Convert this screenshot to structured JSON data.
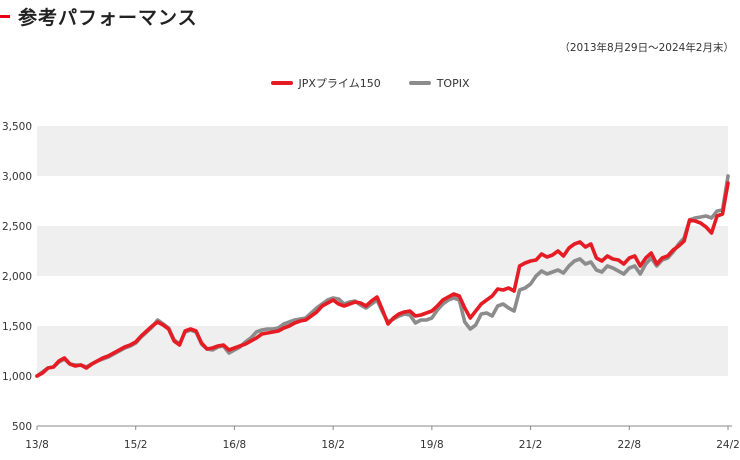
{
  "header": {
    "title": "参考パフォーマンス",
    "period": "（2013年8月29日～2024年2月末）"
  },
  "colors": {
    "accent": "#e60012",
    "jpx": "#e61c24",
    "topix": "#8c8c8c",
    "band": "#efefef"
  },
  "chart_data": {
    "type": "line",
    "title": "参考パフォーマンス",
    "subtitle": "（2013年8月29日～2024年2月末）",
    "legend_position": "top-center",
    "ylim": [
      500,
      3500
    ],
    "y_ticks": [
      500,
      1000,
      1500,
      2000,
      2500,
      3000,
      3500
    ],
    "y_tick_labels": [
      "500",
      "1,000",
      "1,500",
      "2,000",
      "2,500",
      "3,000",
      "3,500"
    ],
    "x_ticks": [
      "13/8",
      "15/2",
      "16/8",
      "18/2",
      "19/8",
      "21/2",
      "22/8",
      "24/2"
    ],
    "x_tick_months": [
      0,
      18,
      36,
      54,
      72,
      90,
      108,
      126
    ],
    "x_months": [
      0,
      1,
      2,
      3,
      4,
      5,
      6,
      7,
      8,
      9,
      10,
      11,
      12,
      13,
      14,
      15,
      16,
      17,
      18,
      19,
      20,
      21,
      22,
      23,
      24,
      25,
      26,
      27,
      28,
      29,
      30,
      31,
      32,
      33,
      34,
      35,
      36,
      37,
      38,
      39,
      40,
      41,
      42,
      43,
      44,
      45,
      46,
      47,
      48,
      49,
      50,
      51,
      52,
      53,
      54,
      55,
      56,
      57,
      58,
      59,
      60,
      61,
      62,
      63,
      64,
      65,
      66,
      67,
      68,
      69,
      70,
      71,
      72,
      73,
      74,
      75,
      76,
      77,
      78,
      79,
      80,
      81,
      82,
      83,
      84,
      85,
      86,
      87,
      88,
      89,
      90,
      91,
      92,
      93,
      94,
      95,
      96,
      97,
      98,
      99,
      100,
      101,
      102,
      103,
      104,
      105,
      106,
      107,
      108,
      109,
      110,
      111,
      112,
      113,
      114,
      115,
      116,
      117,
      118,
      119,
      120,
      121,
      122,
      123,
      124,
      125,
      126
    ],
    "series": [
      {
        "name": "JPXプライム150",
        "color": "#e61c24",
        "values": [
          1000,
          1030,
          1080,
          1090,
          1150,
          1180,
          1120,
          1100,
          1110,
          1080,
          1120,
          1150,
          1180,
          1200,
          1230,
          1260,
          1290,
          1310,
          1340,
          1400,
          1450,
          1500,
          1540,
          1510,
          1470,
          1350,
          1310,
          1450,
          1470,
          1450,
          1330,
          1270,
          1280,
          1300,
          1310,
          1260,
          1280,
          1300,
          1320,
          1350,
          1380,
          1420,
          1430,
          1440,
          1450,
          1480,
          1500,
          1530,
          1550,
          1560,
          1600,
          1640,
          1700,
          1730,
          1760,
          1720,
          1700,
          1720,
          1740,
          1730,
          1700,
          1750,
          1790,
          1660,
          1520,
          1580,
          1620,
          1640,
          1650,
          1600,
          1610,
          1630,
          1650,
          1700,
          1760,
          1790,
          1820,
          1800,
          1680,
          1580,
          1650,
          1720,
          1760,
          1800,
          1870,
          1860,
          1880,
          1850,
          2100,
          2130,
          2150,
          2160,
          2220,
          2190,
          2210,
          2250,
          2200,
          2280,
          2320,
          2340,
          2290,
          2320,
          2180,
          2150,
          2200,
          2170,
          2160,
          2120,
          2180,
          2200,
          2100,
          2180,
          2230,
          2120,
          2180,
          2200,
          2260,
          2300,
          2350,
          2560,
          2550,
          2530,
          2490,
          2430,
          2600,
          2620,
          2930
        ]
      },
      {
        "name": "TOPIX",
        "color": "#8c8c8c",
        "values": [
          1000,
          1040,
          1080,
          1090,
          1140,
          1170,
          1120,
          1110,
          1110,
          1090,
          1120,
          1150,
          1170,
          1190,
          1220,
          1250,
          1280,
          1300,
          1330,
          1390,
          1440,
          1490,
          1560,
          1520,
          1480,
          1360,
          1320,
          1440,
          1460,
          1440,
          1320,
          1270,
          1260,
          1290,
          1300,
          1230,
          1260,
          1290,
          1340,
          1380,
          1440,
          1460,
          1470,
          1470,
          1480,
          1520,
          1540,
          1560,
          1570,
          1580,
          1630,
          1680,
          1720,
          1760,
          1780,
          1770,
          1720,
          1740,
          1750,
          1710,
          1680,
          1720,
          1760,
          1640,
          1540,
          1570,
          1600,
          1620,
          1610,
          1530,
          1560,
          1560,
          1580,
          1660,
          1720,
          1760,
          1780,
          1760,
          1540,
          1470,
          1510,
          1620,
          1630,
          1600,
          1700,
          1720,
          1680,
          1650,
          1860,
          1880,
          1920,
          2000,
          2050,
          2020,
          2040,
          2060,
          2030,
          2100,
          2150,
          2170,
          2120,
          2140,
          2060,
          2040,
          2100,
          2080,
          2050,
          2020,
          2080,
          2100,
          2020,
          2120,
          2180,
          2100,
          2160,
          2180,
          2240,
          2320,
          2380,
          2560,
          2580,
          2590,
          2600,
          2580,
          2650,
          2660,
          3000
        ]
      }
    ]
  }
}
